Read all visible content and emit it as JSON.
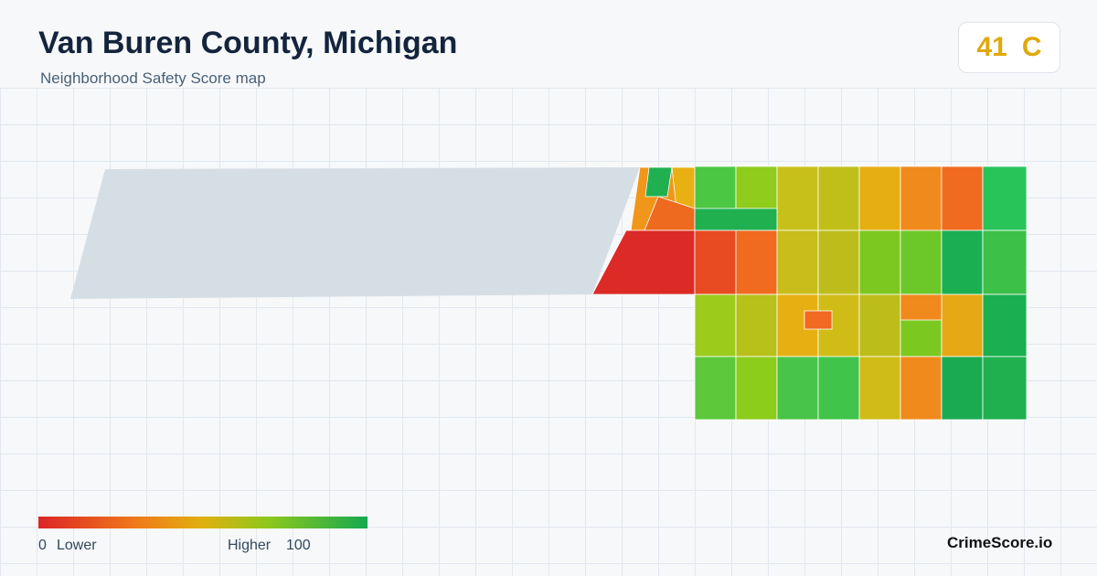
{
  "header": {
    "title": "Van Buren County, Michigan",
    "subtitle": "Neighborhood Safety Score map"
  },
  "score": {
    "value": 41,
    "grade": "C"
  },
  "legend": {
    "min": 0,
    "min_label": "Lower",
    "max_label": "Higher",
    "max": 100
  },
  "footer": {
    "brand": "CrimeScore.io"
  }
}
